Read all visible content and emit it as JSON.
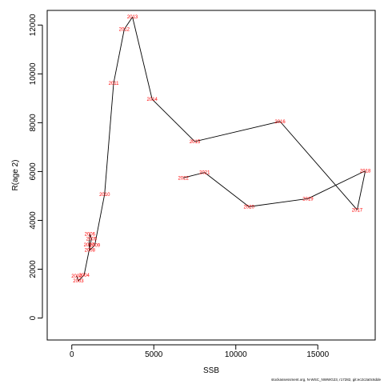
{
  "chart_data": {
    "type": "line",
    "xlabel": "SSB",
    "ylabel": "R(age 2)",
    "xlim": [
      -1500,
      18500
    ],
    "ylim": [
      -900,
      12600
    ],
    "xticks": [
      0,
      5000,
      10000,
      15000
    ],
    "yticks": [
      0,
      2000,
      4000,
      6000,
      8000,
      10000,
      12000
    ],
    "xtick_labels": [
      "0",
      "5000",
      "10000",
      "15000"
    ],
    "ytick_labels": [
      "0",
      "2000",
      "4000",
      "6000",
      "8000",
      "10000",
      "12000"
    ],
    "grid": false,
    "series": [
      {
        "line_color": "#000000",
        "label_color": "#ff0000",
        "points": [
          {
            "label": "2002",
            "x": 300,
            "y": 1720
          },
          {
            "label": "2003",
            "x": 400,
            "y": 1520
          },
          {
            "label": "2004",
            "x": 750,
            "y": 1760
          },
          {
            "label": "2005",
            "x": 1200,
            "y": 3250
          },
          {
            "label": "2006",
            "x": 1100,
            "y": 3440
          },
          {
            "label": "2007",
            "x": 1050,
            "y": 3000
          },
          {
            "label": "2008",
            "x": 1100,
            "y": 2780
          },
          {
            "label": "2009",
            "x": 1400,
            "y": 2980
          },
          {
            "label": "2010",
            "x": 2000,
            "y": 5070
          },
          {
            "label": "2011",
            "x": 2550,
            "y": 9620
          },
          {
            "label": "2012",
            "x": 3200,
            "y": 11830
          },
          {
            "label": "2013",
            "x": 3700,
            "y": 12330
          },
          {
            "label": "2014",
            "x": 4900,
            "y": 8960
          },
          {
            "label": "2015",
            "x": 7500,
            "y": 7230
          },
          {
            "label": "2016",
            "x": 12700,
            "y": 8050
          },
          {
            "label": "2017",
            "x": 17400,
            "y": 4430
          },
          {
            "label": "2018",
            "x": 17900,
            "y": 6030
          },
          {
            "label": "2019",
            "x": 14400,
            "y": 4890
          },
          {
            "label": "2020",
            "x": 10800,
            "y": 4560
          },
          {
            "label": "2021",
            "x": 8100,
            "y": 5960
          },
          {
            "label": "2022",
            "x": 6800,
            "y": 5740
          }
        ]
      }
    ]
  },
  "footer": {
    "text": "stockassessment.org, N-WSC_NWWG23, r17282, git:ec2c2a0c6dde"
  }
}
